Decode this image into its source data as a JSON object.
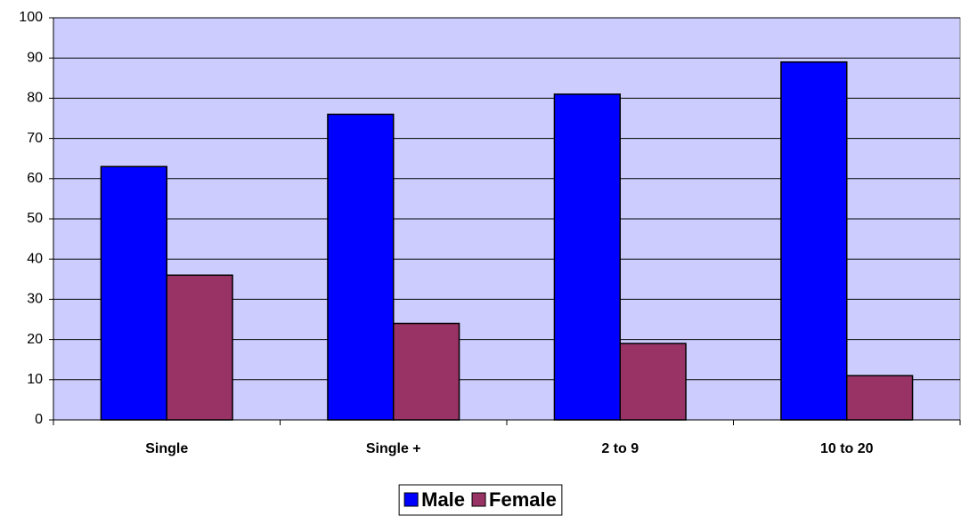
{
  "chart_data": {
    "type": "bar",
    "categories": [
      "Single",
      "Single +",
      "2 to 9",
      "10 to 20"
    ],
    "series": [
      {
        "name": "Male",
        "color": "#0000ff",
        "values": [
          63,
          76,
          81,
          89
        ]
      },
      {
        "name": "Female",
        "color": "#993366",
        "values": [
          36,
          24,
          19,
          11
        ]
      }
    ],
    "ylim": [
      0,
      100
    ],
    "yticks": [
      0,
      10,
      20,
      30,
      40,
      50,
      60,
      70,
      80,
      90,
      100
    ],
    "grid": true,
    "plot_background": "#ccccff",
    "legend": "bottom"
  }
}
